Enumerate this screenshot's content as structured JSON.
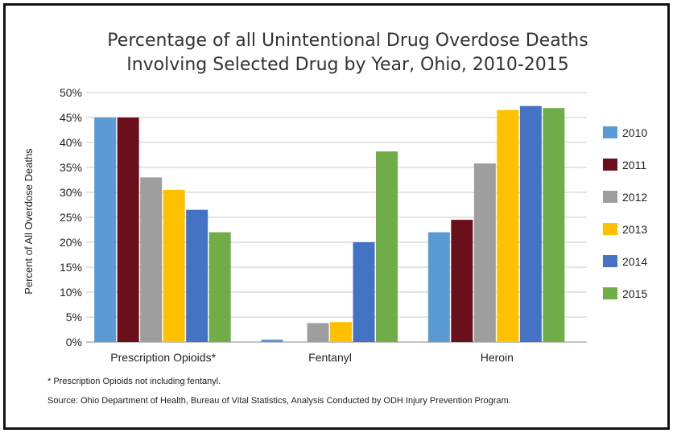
{
  "chart_data": {
    "type": "bar",
    "title_lines": [
      "Percentage of all Unintentional Drug Overdose Deaths",
      "Involving Selected Drug by Year, Ohio, 2010-2015"
    ],
    "ylabel": "Percent of All Overdose Deaths",
    "xlabel": "",
    "ylim": [
      0,
      50
    ],
    "yticks": [
      "0%",
      "5%",
      "10%",
      "15%",
      "20%",
      "25%",
      "30%",
      "35%",
      "40%",
      "45%",
      "50%"
    ],
    "ytick_values": [
      0,
      5,
      10,
      15,
      20,
      25,
      30,
      35,
      40,
      45,
      50
    ],
    "grid": true,
    "legend_position": "right",
    "categories": [
      "Prescription Opioids*",
      "Fentanyl",
      "Heroin"
    ],
    "series": [
      {
        "name": "2010",
        "color": "#5b9bd5",
        "values": [
          45.0,
          0.5,
          22.0
        ]
      },
      {
        "name": "2011",
        "color": "#6b0f1a",
        "values": [
          45.0,
          0.0,
          24.5
        ]
      },
      {
        "name": "2012",
        "color": "#9e9e9e",
        "values": [
          33.0,
          3.8,
          35.8
        ]
      },
      {
        "name": "2013",
        "color": "#ffc000",
        "values": [
          30.5,
          4.0,
          46.5
        ]
      },
      {
        "name": "2014",
        "color": "#4472c4",
        "values": [
          26.5,
          20.0,
          47.3
        ]
      },
      {
        "name": "2015",
        "color": "#70ad47",
        "values": [
          22.0,
          38.2,
          46.9
        ]
      }
    ],
    "footnote": "* Prescription Opioids not including fentanyl.",
    "source": "Source: Ohio Department of Health, Bureau of Vital Statistics, Analysis Conducted by ODH Injury Prevention Program."
  }
}
